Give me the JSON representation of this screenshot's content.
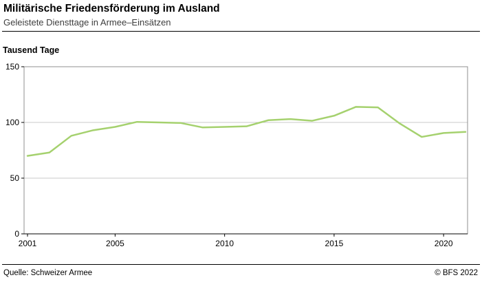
{
  "header": {
    "title": "Militärische Friedensförderung im Ausland",
    "subtitle": "Geleistete Diensttage in Armee–Einsätzen"
  },
  "chart": {
    "unit_label": "Tausend Tage"
  },
  "footer": {
    "source": "Quelle: Schweizer Armee",
    "copyright": "© BFS 2022"
  },
  "chart_data": {
    "type": "line",
    "title": "Militärische Friedensförderung im Ausland",
    "subtitle": "Geleistete Diensttage in Armee–Einsätzen",
    "ylabel": "Tausend Tage",
    "x": [
      2001,
      2002,
      2003,
      2004,
      2005,
      2006,
      2007,
      2008,
      2009,
      2010,
      2011,
      2012,
      2013,
      2014,
      2015,
      2016,
      2017,
      2018,
      2019,
      2020,
      2021
    ],
    "series": [
      {
        "name": "Geleistete Diensttage in Armee-Einsätzen",
        "values": [
          70,
          73,
          88,
          93,
          96,
          100.5,
          100,
          99.5,
          95.5,
          96,
          96.5,
          102,
          103,
          101.5,
          106,
          114,
          113.5,
          99,
          87,
          90.5,
          91.5
        ]
      }
    ],
    "ylim": [
      0,
      150
    ],
    "yticks": [
      0,
      50,
      100,
      150
    ],
    "xticks": [
      2001,
      2005,
      2010,
      2015,
      2020
    ],
    "grid": true,
    "legend": "none",
    "colors": {
      "line": "#a5d16e",
      "grid": "#c9c9c9",
      "frame": "#8f8f8f",
      "axis": "#000000"
    }
  }
}
